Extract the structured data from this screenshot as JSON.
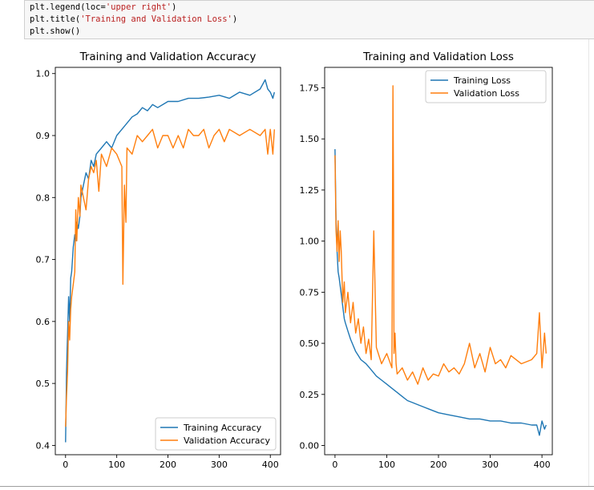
{
  "code": {
    "lines": [
      {
        "pre": "plt.legend(loc=",
        "str": "'upper right'",
        "post": ")"
      },
      {
        "pre": "plt.title(",
        "str": "'Training and Validation Loss'",
        "post": ")"
      },
      {
        "pre": "plt.show()",
        "str": "",
        "post": ""
      }
    ]
  },
  "chart_data": [
    {
      "type": "line",
      "title": "Training and Validation Accuracy",
      "xlabel": "",
      "ylabel": "",
      "xlim": [
        -20,
        420
      ],
      "ylim": [
        0.385,
        1.01
      ],
      "xticks": [
        0,
        100,
        200,
        300,
        400
      ],
      "yticks": [
        0.4,
        0.5,
        0.6,
        0.7,
        0.8,
        0.9,
        1.0
      ],
      "xtick_labels": [
        "0",
        "100",
        "200",
        "300",
        "400"
      ],
      "ytick_labels": [
        "0.4",
        "0.5",
        "0.6",
        "0.7",
        "0.8",
        "0.9",
        "1.0"
      ],
      "legend": "lower-right",
      "grid": false,
      "series": [
        {
          "name": "Training Accuracy",
          "color": "#1f77b4",
          "x": [
            0,
            2,
            4,
            6,
            8,
            10,
            12,
            15,
            18,
            20,
            22,
            25,
            28,
            30,
            35,
            40,
            45,
            50,
            55,
            60,
            70,
            80,
            90,
            100,
            110,
            120,
            130,
            140,
            150,
            160,
            170,
            180,
            190,
            200,
            220,
            240,
            260,
            280,
            300,
            320,
            340,
            360,
            380,
            390,
            395,
            400,
            405,
            408
          ],
          "y": [
            0.405,
            0.52,
            0.58,
            0.64,
            0.6,
            0.67,
            0.68,
            0.72,
            0.74,
            0.73,
            0.76,
            0.75,
            0.77,
            0.8,
            0.82,
            0.84,
            0.83,
            0.86,
            0.85,
            0.87,
            0.88,
            0.89,
            0.88,
            0.9,
            0.91,
            0.92,
            0.93,
            0.935,
            0.945,
            0.94,
            0.95,
            0.945,
            0.95,
            0.955,
            0.955,
            0.96,
            0.96,
            0.962,
            0.965,
            0.96,
            0.97,
            0.965,
            0.975,
            0.99,
            0.975,
            0.97,
            0.96,
            0.97
          ]
        },
        {
          "name": "Validation Accuracy",
          "color": "#ff7f0e",
          "x": [
            0,
            2,
            4,
            6,
            8,
            10,
            12,
            15,
            18,
            20,
            22,
            25,
            28,
            30,
            35,
            40,
            45,
            50,
            55,
            60,
            65,
            70,
            80,
            90,
            100,
            110,
            112,
            115,
            118,
            120,
            130,
            140,
            150,
            160,
            170,
            180,
            190,
            200,
            210,
            220,
            230,
            240,
            250,
            260,
            270,
            280,
            290,
            300,
            310,
            320,
            340,
            360,
            380,
            390,
            395,
            400,
            405,
            408
          ],
          "y": [
            0.43,
            0.48,
            0.52,
            0.6,
            0.57,
            0.62,
            0.64,
            0.66,
            0.68,
            0.78,
            0.73,
            0.8,
            0.77,
            0.82,
            0.8,
            0.78,
            0.83,
            0.85,
            0.84,
            0.86,
            0.81,
            0.87,
            0.85,
            0.88,
            0.87,
            0.85,
            0.66,
            0.82,
            0.76,
            0.88,
            0.87,
            0.9,
            0.89,
            0.9,
            0.91,
            0.88,
            0.9,
            0.9,
            0.88,
            0.9,
            0.88,
            0.91,
            0.9,
            0.9,
            0.91,
            0.88,
            0.9,
            0.91,
            0.89,
            0.91,
            0.9,
            0.91,
            0.9,
            0.91,
            0.87,
            0.91,
            0.87,
            0.91
          ]
        }
      ]
    },
    {
      "type": "line",
      "title": "Training and Validation Loss",
      "xlabel": "",
      "ylabel": "",
      "xlim": [
        -20,
        420
      ],
      "ylim": [
        -0.045,
        1.85
      ],
      "xticks": [
        0,
        100,
        200,
        300,
        400
      ],
      "yticks": [
        0.0,
        0.25,
        0.5,
        0.75,
        1.0,
        1.25,
        1.5,
        1.75
      ],
      "xtick_labels": [
        "0",
        "100",
        "200",
        "300",
        "400"
      ],
      "ytick_labels": [
        "0.00",
        "0.25",
        "0.50",
        "0.75",
        "1.00",
        "1.25",
        "1.50",
        "1.75"
      ],
      "legend": "upper-right",
      "grid": false,
      "series": [
        {
          "name": "Training Loss",
          "color": "#1f77b4",
          "x": [
            0,
            2,
            4,
            6,
            8,
            10,
            12,
            15,
            18,
            20,
            25,
            30,
            35,
            40,
            45,
            50,
            60,
            70,
            80,
            90,
            100,
            110,
            120,
            130,
            140,
            150,
            160,
            170,
            180,
            190,
            200,
            220,
            240,
            260,
            280,
            300,
            320,
            340,
            360,
            380,
            390,
            395,
            400,
            405,
            408
          ],
          "y": [
            1.45,
            1.1,
            0.95,
            0.85,
            0.82,
            0.78,
            0.74,
            0.68,
            0.62,
            0.6,
            0.56,
            0.52,
            0.49,
            0.46,
            0.44,
            0.42,
            0.4,
            0.37,
            0.34,
            0.32,
            0.3,
            0.28,
            0.26,
            0.24,
            0.22,
            0.21,
            0.2,
            0.19,
            0.18,
            0.17,
            0.16,
            0.15,
            0.14,
            0.13,
            0.13,
            0.12,
            0.12,
            0.11,
            0.11,
            0.1,
            0.1,
            0.05,
            0.12,
            0.08,
            0.1
          ]
        },
        {
          "name": "Validation Loss",
          "color": "#ff7f0e",
          "x": [
            0,
            2,
            4,
            6,
            8,
            10,
            12,
            15,
            18,
            20,
            25,
            30,
            35,
            40,
            45,
            50,
            55,
            60,
            65,
            70,
            75,
            80,
            90,
            100,
            110,
            112,
            113,
            114,
            116,
            118,
            120,
            130,
            140,
            150,
            160,
            170,
            180,
            190,
            200,
            210,
            220,
            230,
            240,
            250,
            260,
            270,
            280,
            290,
            300,
            310,
            320,
            330,
            340,
            360,
            380,
            390,
            395,
            400,
            405,
            408
          ],
          "y": [
            1.42,
            1.05,
            0.95,
            1.1,
            0.9,
            1.05,
            0.95,
            0.7,
            0.8,
            0.65,
            0.75,
            0.6,
            0.7,
            0.55,
            0.62,
            0.5,
            0.58,
            0.45,
            0.52,
            0.42,
            1.05,
            0.48,
            0.4,
            0.45,
            0.38,
            1.76,
            1.3,
            0.45,
            0.55,
            0.4,
            0.35,
            0.38,
            0.32,
            0.36,
            0.3,
            0.38,
            0.32,
            0.35,
            0.34,
            0.4,
            0.36,
            0.38,
            0.35,
            0.4,
            0.5,
            0.38,
            0.45,
            0.36,
            0.48,
            0.4,
            0.42,
            0.38,
            0.44,
            0.4,
            0.42,
            0.45,
            0.65,
            0.38,
            0.55,
            0.45
          ]
        }
      ]
    }
  ]
}
